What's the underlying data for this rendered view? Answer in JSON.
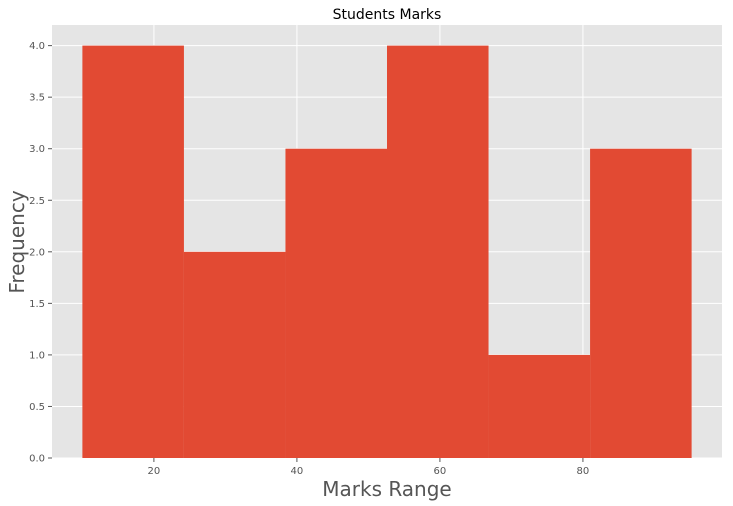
{
  "chart_data": {
    "type": "bar",
    "title": "Students Marks",
    "xlabel": "Marks Range",
    "ylabel": "Frequency",
    "bins": [
      {
        "start": 10,
        "end": 24.2,
        "count": 4
      },
      {
        "start": 24.2,
        "end": 38.4,
        "count": 2
      },
      {
        "start": 38.4,
        "end": 52.6,
        "count": 3
      },
      {
        "start": 52.6,
        "end": 66.8,
        "count": 4
      },
      {
        "start": 66.8,
        "end": 81.0,
        "count": 1
      },
      {
        "start": 81.0,
        "end": 95.2,
        "count": 3
      }
    ],
    "xlim": [
      5.75,
      99.45
    ],
    "ylim": [
      0,
      4.2
    ],
    "xticks": [
      20,
      40,
      60,
      80
    ],
    "xtick_labels": [
      "20",
      "40",
      "60",
      "80"
    ],
    "yticks": [
      0.0,
      0.5,
      1.0,
      1.5,
      2.0,
      2.5,
      3.0,
      3.5,
      4.0
    ],
    "ytick_labels": [
      "0.0",
      "0.5",
      "1.0",
      "1.5",
      "2.0",
      "2.5",
      "3.0",
      "3.5",
      "4.0"
    ],
    "grid": true,
    "colors": {
      "bar": "#E24A33",
      "background": "#E5E5E5",
      "grid": "#FFFFFF",
      "tick": "#555555"
    }
  }
}
